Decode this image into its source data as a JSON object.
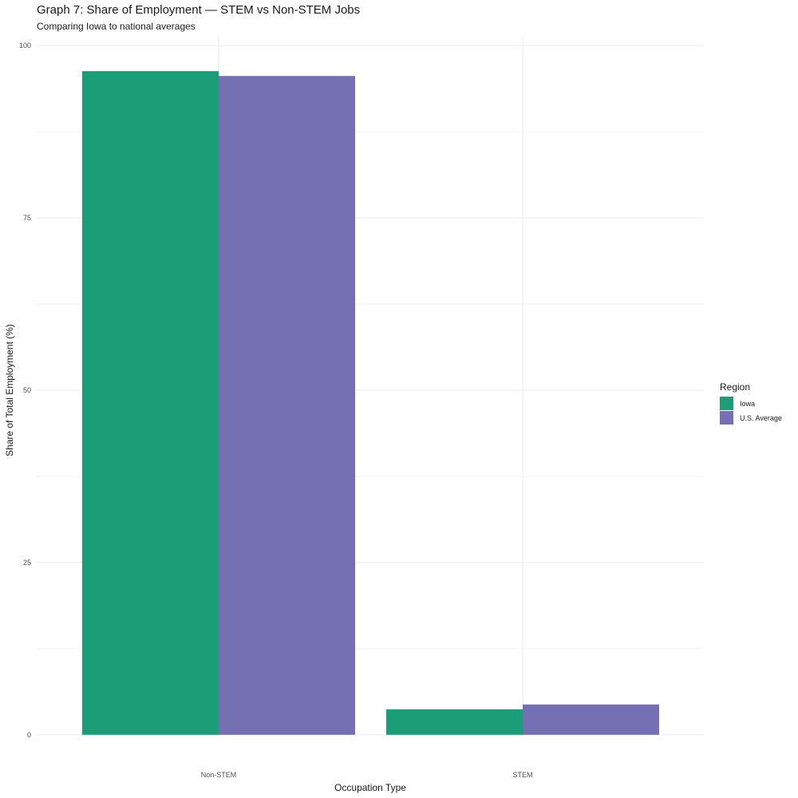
{
  "chart_data": {
    "type": "bar",
    "title": "Graph 7: Share of Employment — STEM vs Non-STEM Jobs",
    "subtitle": "Comparing Iowa to national averages",
    "xlabel": "Occupation Type",
    "ylabel": "Share of Total Employment (%)",
    "categories": [
      "Non-STEM",
      "STEM"
    ],
    "series": [
      {
        "name": "Iowa",
        "color": "#1b9e77",
        "values": [
          96.3,
          3.7
        ]
      },
      {
        "name": "U.S. Average",
        "color": "#7570b3",
        "values": [
          95.6,
          4.4
        ]
      }
    ],
    "ylim": [
      0,
      100
    ],
    "yticks": [
      0,
      25,
      50,
      75,
      100
    ],
    "grid": true,
    "legend": {
      "title": "Region",
      "position": "right"
    }
  }
}
